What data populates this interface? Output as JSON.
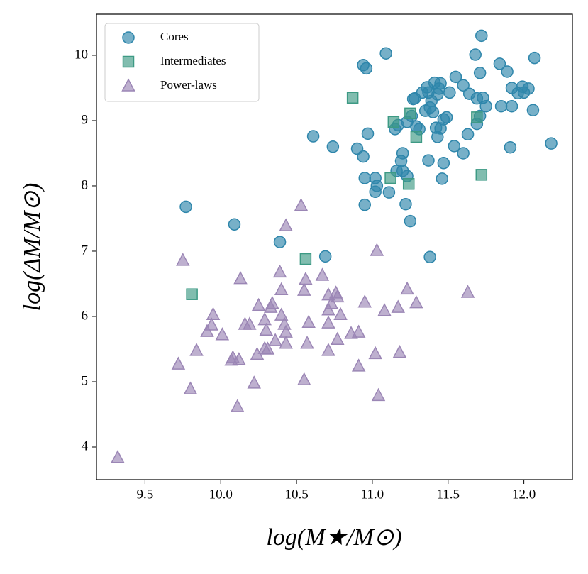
{
  "chart_data": {
    "type": "scatter",
    "xlabel": "log(M★/M⊙)",
    "ylabel": "log(ΔM/M⊙)",
    "xlim": [
      9.18,
      12.32
    ],
    "ylim": [
      3.5,
      10.63
    ],
    "xticks": [
      9.5,
      {
        "value": 10.0,
        "label": "10.0"
      },
      10.5,
      {
        "value": 11.0,
        "label": "11.0"
      },
      11.5,
      {
        "value": 12.0,
        "label": "12.0"
      }
    ],
    "yticks": [
      4,
      5,
      6,
      7,
      8,
      9,
      10
    ],
    "legend": "upper left",
    "series": [
      {
        "name": "Cores",
        "color": "#2e86ab",
        "marker": "circle",
        "x": [
          11.72,
          11.68,
          12.07,
          11.09,
          10.94,
          10.96,
          11.71,
          11.84,
          11.89,
          11.55,
          11.45,
          11.41,
          11.36,
          11.28,
          11.33,
          11.44,
          11.51,
          11.6,
          11.64,
          11.69,
          11.73,
          11.92,
          11.96,
          11.99,
          12.03,
          12.0,
          11.92,
          11.75,
          11.71,
          11.27,
          11.37,
          11.43,
          11.39,
          11.38,
          11.35,
          11.4,
          11.47,
          11.49,
          11.26,
          11.23,
          11.29,
          11.31,
          11.17,
          11.15,
          11.42,
          11.43,
          11.45,
          12.06,
          11.85,
          11.69,
          11.63,
          11.54,
          11.6,
          11.47,
          11.46,
          11.37,
          11.2,
          11.19,
          11.2,
          11.23,
          11.16,
          11.02,
          11.03,
          11.02,
          10.95,
          10.95,
          11.11,
          11.22,
          11.25,
          10.97,
          10.9,
          10.94,
          10.61,
          10.74,
          12.18,
          11.91,
          9.77,
          10.09,
          10.39,
          10.69,
          11.38
        ],
        "values": [
          10.3,
          10.01,
          9.96,
          10.03,
          9.85,
          9.8,
          9.73,
          9.87,
          9.75,
          9.67,
          9.57,
          9.58,
          9.51,
          9.34,
          9.43,
          9.49,
          9.43,
          9.54,
          9.41,
          9.34,
          9.35,
          9.5,
          9.42,
          9.52,
          9.49,
          9.43,
          9.22,
          9.22,
          9.07,
          9.33,
          9.43,
          9.4,
          9.3,
          9.2,
          9.15,
          9.13,
          9.02,
          9.05,
          9.07,
          8.98,
          8.91,
          8.87,
          8.93,
          8.87,
          8.89,
          8.75,
          8.88,
          9.16,
          9.22,
          8.95,
          8.79,
          8.61,
          8.5,
          8.35,
          8.11,
          8.39,
          8.5,
          8.38,
          8.23,
          8.15,
          8.23,
          8.12,
          8.0,
          7.91,
          8.12,
          7.71,
          7.9,
          7.72,
          7.46,
          8.8,
          8.57,
          8.45,
          8.76,
          8.6,
          8.65,
          8.59,
          7.68,
          7.41,
          7.14,
          6.92,
          6.91
        ]
      },
      {
        "name": "Intermediates",
        "color": "#3d9a84",
        "marker": "square",
        "x": [
          10.87,
          11.14,
          11.25,
          11.29,
          11.69,
          11.72,
          11.12,
          11.24,
          10.56,
          9.81
        ],
        "values": [
          9.35,
          8.98,
          9.11,
          8.75,
          9.05,
          8.17,
          8.12,
          8.03,
          6.88,
          6.34
        ]
      },
      {
        "name": "Power-laws",
        "color": "#9b86b5",
        "marker": "triangle",
        "x": [
          10.53,
          10.43,
          9.75,
          10.39,
          10.13,
          10.56,
          10.55,
          10.4,
          10.67,
          11.03,
          11.63,
          11.23,
          11.29,
          11.08,
          11.17,
          10.95,
          10.76,
          10.71,
          10.77,
          10.73,
          10.71,
          10.79,
          10.25,
          10.33,
          10.34,
          10.4,
          10.58,
          10.71,
          10.29,
          10.16,
          10.19,
          10.3,
          10.42,
          10.43,
          9.95,
          9.94,
          9.91,
          10.01,
          9.84,
          10.43,
          10.31,
          10.08,
          10.29,
          10.24,
          10.12,
          10.36,
          10.57,
          10.71,
          10.77,
          10.91,
          10.86,
          10.91,
          11.02,
          11.18,
          10.07,
          10.22,
          9.72,
          9.8,
          10.55,
          11.04,
          10.11,
          9.32
        ],
        "values": [
          7.7,
          7.39,
          6.86,
          6.68,
          6.58,
          6.57,
          6.4,
          6.41,
          6.63,
          7.01,
          6.37,
          6.42,
          6.21,
          6.09,
          6.14,
          6.22,
          6.36,
          6.33,
          6.3,
          6.2,
          6.1,
          6.03,
          6.17,
          6.14,
          6.2,
          6.02,
          5.91,
          5.9,
          5.95,
          5.88,
          5.88,
          5.79,
          5.88,
          5.76,
          6.03,
          5.87,
          5.77,
          5.72,
          5.48,
          5.59,
          5.5,
          5.37,
          5.51,
          5.42,
          5.34,
          5.63,
          5.59,
          5.48,
          5.65,
          5.76,
          5.74,
          5.24,
          5.43,
          5.45,
          5.33,
          4.98,
          5.27,
          4.89,
          5.03,
          4.79,
          4.62,
          3.84
        ]
      }
    ]
  }
}
